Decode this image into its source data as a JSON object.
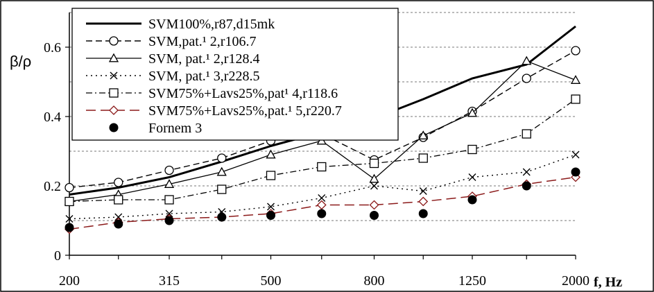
{
  "chart_data": {
    "type": "line",
    "ylabel": "β/ρ",
    "xlabel": "f, Hz",
    "x": [
      200,
      250,
      315,
      400,
      500,
      630,
      800,
      1000,
      1250,
      1600,
      2000
    ],
    "x_tick_labels": [
      "200",
      "315",
      "500",
      "800",
      "1250",
      "2000"
    ],
    "x_tick_values": [
      200,
      315,
      500,
      800,
      1250,
      2000
    ],
    "y_ticks": [
      "0",
      "0.2",
      "0.4",
      "0.6"
    ],
    "y_tick_values": [
      0,
      0.2,
      0.4,
      0.6
    ],
    "ylim": [
      0,
      0.7
    ],
    "x_scale": "log",
    "grid": "horizontal dashed",
    "legend_position": "top-left",
    "series": [
      {
        "name": "SVM100%,r87,d15mk",
        "style": "solid-thick",
        "marker": "none",
        "color": "#000000",
        "values": [
          0.175,
          0.195,
          0.225,
          0.27,
          0.315,
          0.355,
          0.395,
          0.45,
          0.51,
          0.55,
          0.66
        ]
      },
      {
        "name": "SVM,pat.¹  2,r106.7",
        "style": "dashed",
        "marker": "circle-open",
        "color": "#000000",
        "values": [
          0.195,
          0.21,
          0.245,
          0.28,
          0.33,
          0.35,
          0.275,
          0.34,
          0.415,
          0.51,
          0.59
        ]
      },
      {
        "name": "SVM, pat.¹  2,r128.4",
        "style": "solid",
        "marker": "triangle-open",
        "color": "#000000",
        "values": [
          0.155,
          0.175,
          0.205,
          0.24,
          0.29,
          0.33,
          0.22,
          0.345,
          0.41,
          0.56,
          0.505
        ]
      },
      {
        "name": "SVM, pat.¹  3,r228.5",
        "style": "dotted",
        "marker": "x",
        "color": "#000000",
        "values": [
          0.105,
          0.11,
          0.12,
          0.125,
          0.14,
          0.165,
          0.2,
          0.185,
          0.225,
          0.24,
          0.29
        ]
      },
      {
        "name": "SVM75%+Lavs25%,pat¹  4,r118.6",
        "style": "dash-dot",
        "marker": "square-open",
        "color": "#000000",
        "values": [
          0.155,
          0.16,
          0.16,
          0.19,
          0.23,
          0.255,
          0.265,
          0.28,
          0.305,
          0.35,
          0.45
        ]
      },
      {
        "name": "SVM75%+Lavs25%,pat.¹  5,r220.7",
        "style": "long-dash",
        "marker": "diamond-open",
        "color": "#8b1a1a",
        "values": [
          0.075,
          0.095,
          0.105,
          0.11,
          0.12,
          0.145,
          0.145,
          0.155,
          0.17,
          0.205,
          0.225
        ]
      },
      {
        "name": "Fornem 3",
        "style": "none",
        "marker": "dot-filled",
        "color": "#000000",
        "values": [
          0.08,
          0.09,
          0.1,
          0.11,
          0.115,
          0.12,
          0.115,
          0.12,
          0.16,
          0.2,
          0.24
        ]
      }
    ]
  }
}
